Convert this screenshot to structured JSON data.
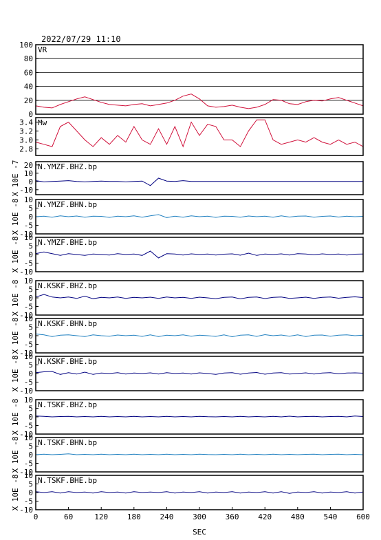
{
  "chart_data": [
    {
      "type": "line",
      "title": "2022/07/29  11:10",
      "label": "VR",
      "color": "#d0103a",
      "grid": true,
      "x": [
        0,
        15,
        30,
        45,
        60,
        75,
        90,
        105,
        120,
        135,
        150,
        165,
        180,
        195,
        210,
        225,
        240,
        255,
        270,
        285,
        300,
        315,
        330,
        345,
        360,
        375,
        390,
        405,
        420,
        435,
        450,
        465,
        480,
        495,
        510,
        525,
        540,
        555,
        570,
        585,
        600
      ],
      "values": [
        12,
        10,
        9,
        14,
        18,
        22,
        25,
        21,
        17,
        14,
        13,
        12,
        14,
        15,
        12,
        14,
        16,
        20,
        26,
        29,
        22,
        12,
        10,
        11,
        13,
        10,
        8,
        10,
        14,
        21,
        20,
        15,
        14,
        18,
        20,
        19,
        22,
        24,
        20,
        16,
        12
      ],
      "xlim": [
        0,
        600
      ],
      "ylim": [
        0,
        100
      ],
      "yticks": [
        0,
        20,
        40,
        60,
        80,
        100
      ]
    },
    {
      "type": "line",
      "label": "Mw",
      "color": "#d0103a",
      "x": [
        0,
        15,
        30,
        45,
        60,
        75,
        90,
        105,
        120,
        135,
        150,
        165,
        180,
        195,
        210,
        225,
        240,
        255,
        270,
        285,
        300,
        315,
        330,
        345,
        360,
        375,
        390,
        405,
        420,
        435,
        450,
        465,
        480,
        495,
        510,
        525,
        540,
        555,
        570,
        585,
        600
      ],
      "values": [
        2.95,
        2.9,
        2.85,
        3.3,
        3.4,
        3.2,
        3.0,
        2.85,
        3.05,
        2.9,
        3.1,
        2.95,
        3.3,
        3.0,
        2.9,
        3.25,
        2.9,
        3.3,
        2.85,
        3.4,
        3.1,
        3.35,
        3.3,
        3.0,
        3.0,
        2.85,
        3.2,
        3.45,
        3.45,
        3.0,
        2.9,
        2.95,
        3.0,
        2.95,
        3.05,
        2.95,
        2.9,
        3.0,
        2.9,
        2.95,
        2.85
      ],
      "xlim": [
        0,
        600
      ],
      "ylim": [
        2.65,
        3.5
      ],
      "yticks": [
        2.8,
        {
          "value": 3,
          "label": "3.0"
        },
        3.2,
        3.4
      ]
    },
    {
      "type": "line",
      "label": "N.YMZF.BHZ.bp",
      "ylabel": "X 10E -7",
      "color": "#000080",
      "x": [
        0,
        15,
        30,
        45,
        60,
        75,
        90,
        105,
        120,
        135,
        150,
        165,
        180,
        195,
        210,
        225,
        240,
        255,
        270,
        285,
        300,
        315,
        330,
        345,
        360,
        375,
        390,
        405,
        420,
        435,
        450,
        465,
        480,
        495,
        510,
        525,
        540,
        555,
        570,
        585,
        600
      ],
      "values": [
        1,
        -0.5,
        0,
        0.5,
        1,
        0,
        -0.5,
        0,
        0.5,
        0,
        0,
        -0.5,
        0,
        0.5,
        -5,
        4,
        0.5,
        0,
        1,
        0,
        0,
        0,
        0,
        0,
        0,
        0,
        0,
        0,
        0,
        0,
        0,
        0,
        0,
        0,
        0,
        0,
        0,
        0,
        0,
        0,
        0
      ],
      "xlim": [
        0,
        600
      ],
      "ylim": [
        -16,
        24
      ],
      "yticks": [
        -10,
        0,
        10,
        20
      ]
    },
    {
      "type": "line",
      "label": "N.YMZF.BHN.bp",
      "ylabel": "X 10E -8",
      "color": "#2080c0",
      "x": [
        0,
        15,
        30,
        45,
        60,
        75,
        90,
        105,
        120,
        135,
        150,
        165,
        180,
        195,
        210,
        225,
        240,
        255,
        270,
        285,
        300,
        315,
        330,
        345,
        360,
        375,
        390,
        405,
        420,
        435,
        450,
        465,
        480,
        495,
        510,
        525,
        540,
        555,
        570,
        585,
        600
      ],
      "values": [
        0,
        0.3,
        -0.3,
        0.5,
        0,
        0.4,
        -0.3,
        0.3,
        0.2,
        -0.4,
        0.3,
        0,
        0.5,
        -0.3,
        0.5,
        1.2,
        -0.5,
        0.3,
        -0.3,
        0.5,
        0,
        0.3,
        -0.4,
        0.3,
        0.2,
        -0.3,
        0.4,
        0,
        0.3,
        -0.3,
        0.5,
        -0.2,
        0.3,
        0.4,
        -0.3,
        0.2,
        0.4,
        -0.2,
        0.3,
        0,
        0.2
      ],
      "xlim": [
        0,
        600
      ],
      "ylim": [
        -10,
        10
      ],
      "yticks": [
        -10,
        -5,
        0,
        5,
        10
      ]
    },
    {
      "type": "line",
      "label": "N.YMZF.BHE.bp",
      "ylabel": "X 10E -8",
      "color": "#000080",
      "x": [
        0,
        15,
        30,
        45,
        60,
        75,
        90,
        105,
        120,
        135,
        150,
        165,
        180,
        195,
        210,
        225,
        240,
        255,
        270,
        285,
        300,
        315,
        330,
        345,
        360,
        375,
        390,
        405,
        420,
        435,
        450,
        465,
        480,
        495,
        510,
        525,
        540,
        555,
        570,
        585,
        600
      ],
      "values": [
        0.5,
        1.5,
        0.5,
        -0.5,
        0.5,
        0,
        -0.5,
        0.3,
        0,
        -0.3,
        0.5,
        0,
        0.3,
        -0.5,
        2,
        -2,
        0.5,
        0.3,
        -0.3,
        0.4,
        0,
        0.3,
        -0.3,
        0.2,
        0.4,
        -0.4,
        0.8,
        -0.5,
        0.3,
        0,
        0.4,
        -0.3,
        0.5,
        0.3,
        -0.2,
        0.4,
        0,
        0.3,
        -0.3,
        0.2,
        0.3
      ],
      "xlim": [
        0,
        600
      ],
      "ylim": [
        -10,
        10
      ],
      "yticks": [
        -10,
        -5,
        0,
        5,
        10
      ]
    },
    {
      "type": "line",
      "label": "N.KSKF.BHZ.bp",
      "ylabel": "X 10E -8",
      "color": "#000080",
      "x": [
        0,
        15,
        30,
        45,
        60,
        75,
        90,
        105,
        120,
        135,
        150,
        165,
        180,
        195,
        210,
        225,
        240,
        255,
        270,
        285,
        300,
        315,
        330,
        345,
        360,
        375,
        390,
        405,
        420,
        435,
        450,
        465,
        480,
        495,
        510,
        525,
        540,
        555,
        570,
        585,
        600
      ],
      "values": [
        0.5,
        2,
        0.5,
        0,
        0.5,
        -0.3,
        1,
        -0.5,
        0.3,
        0,
        0.5,
        -0.3,
        0.3,
        0,
        0.4,
        -0.3,
        0.5,
        0,
        0.3,
        -0.3,
        0.4,
        0,
        -0.5,
        0.3,
        0.5,
        -0.6,
        0.3,
        0.5,
        -0.4,
        0.3,
        0.5,
        -0.3,
        0,
        0.4,
        -0.3,
        0.3,
        0.5,
        -0.2,
        0.3,
        0.6,
        0.2
      ],
      "xlim": [
        0,
        600
      ],
      "ylim": [
        -10,
        10
      ],
      "yticks": [
        -10,
        -5,
        0,
        5,
        10
      ]
    },
    {
      "type": "line",
      "label": "N.KSKF.BHN.bp",
      "ylabel": "X 10E -8",
      "color": "#2080c0",
      "x": [
        0,
        15,
        30,
        45,
        60,
        75,
        90,
        105,
        120,
        135,
        150,
        165,
        180,
        195,
        210,
        225,
        240,
        255,
        270,
        285,
        300,
        315,
        330,
        345,
        360,
        375,
        390,
        405,
        420,
        435,
        450,
        465,
        480,
        495,
        510,
        525,
        540,
        555,
        570,
        585,
        600
      ],
      "values": [
        1,
        0.5,
        -0.5,
        0.3,
        0.5,
        0,
        -0.5,
        0.5,
        0,
        -0.3,
        0.4,
        0,
        0.3,
        -0.4,
        0.5,
        -0.5,
        0.3,
        0,
        0.5,
        -0.3,
        0.3,
        0,
        -0.4,
        0.5,
        -0.6,
        0.3,
        0.5,
        -0.4,
        0.6,
        0,
        0.4,
        -0.3,
        0.5,
        -0.5,
        0.3,
        0.4,
        -0.3,
        0.3,
        0.5,
        0,
        0.3
      ],
      "xlim": [
        0,
        600
      ],
      "ylim": [
        -10,
        10
      ],
      "yticks": [
        -10,
        -5,
        0,
        5,
        10
      ]
    },
    {
      "type": "line",
      "label": "N.KSKF.BHE.bp",
      "ylabel": "X 10E -8",
      "color": "#000080",
      "x": [
        0,
        15,
        30,
        45,
        60,
        75,
        90,
        105,
        120,
        135,
        150,
        165,
        180,
        195,
        210,
        225,
        240,
        255,
        270,
        285,
        300,
        315,
        330,
        345,
        360,
        375,
        390,
        405,
        420,
        435,
        450,
        465,
        480,
        495,
        510,
        525,
        540,
        555,
        570,
        585,
        600
      ],
      "values": [
        0.5,
        1,
        1.2,
        -0.5,
        0.5,
        -0.3,
        0.8,
        -0.5,
        0.3,
        0,
        0.5,
        -0.3,
        0.3,
        0,
        0.4,
        -0.3,
        0.5,
        0,
        0.3,
        -0.3,
        0.4,
        0,
        -0.5,
        0.3,
        0.5,
        -0.4,
        0.3,
        0.6,
        -0.4,
        0.3,
        0.5,
        -0.3,
        0,
        0.4,
        -0.3,
        0.3,
        0.5,
        -0.2,
        0.3,
        0.4,
        0.2
      ],
      "xlim": [
        0,
        600
      ],
      "ylim": [
        -10,
        10
      ],
      "yticks": [
        -10,
        -5,
        0,
        5,
        10
      ]
    },
    {
      "type": "line",
      "label": "N.TSKF.BHZ.bp",
      "ylabel": "X 10E -8",
      "color": "#000080",
      "x": [
        0,
        15,
        30,
        45,
        60,
        75,
        90,
        105,
        120,
        135,
        150,
        165,
        180,
        195,
        210,
        225,
        240,
        255,
        270,
        285,
        300,
        315,
        330,
        345,
        360,
        375,
        390,
        405,
        420,
        435,
        450,
        465,
        480,
        495,
        510,
        525,
        540,
        555,
        570,
        585,
        600
      ],
      "values": [
        0.5,
        0.3,
        0,
        0.2,
        0.3,
        0,
        0.2,
        0,
        0.3,
        0,
        0.2,
        0,
        0.3,
        0,
        0.2,
        0,
        0.3,
        0,
        0.2,
        0,
        0.3,
        0.1,
        0,
        0.2,
        0,
        0.3,
        0,
        0.2,
        0,
        0.3,
        0,
        0.4,
        0,
        0.2,
        0.3,
        0,
        0.2,
        0.3,
        0,
        0.5,
        0.2
      ],
      "xlim": [
        0,
        600
      ],
      "ylim": [
        -10,
        10
      ],
      "yticks": [
        -10,
        -5,
        0,
        5,
        10
      ]
    },
    {
      "type": "line",
      "label": "N.TSKF.BHN.bp",
      "ylabel": "X 10E -8",
      "color": "#2080c0",
      "x": [
        0,
        15,
        30,
        45,
        60,
        75,
        90,
        105,
        120,
        135,
        150,
        165,
        180,
        195,
        210,
        225,
        240,
        255,
        270,
        285,
        300,
        315,
        330,
        345,
        360,
        375,
        390,
        405,
        420,
        435,
        450,
        465,
        480,
        495,
        510,
        525,
        540,
        555,
        570,
        585,
        600
      ],
      "values": [
        0,
        0.3,
        0,
        0.2,
        0.5,
        0,
        0.2,
        0,
        0.3,
        0,
        0.2,
        0,
        0.3,
        0,
        0.2,
        0,
        0.3,
        0,
        0.2,
        0,
        0.3,
        0.1,
        0,
        0.2,
        0,
        0.3,
        0,
        0.2,
        0,
        0.3,
        0,
        0.2,
        0,
        0.2,
        0.3,
        0,
        0.2,
        0.3,
        0,
        0.2,
        0
      ],
      "xlim": [
        0,
        600
      ],
      "ylim": [
        -10,
        10
      ],
      "yticks": [
        -10,
        -5,
        0,
        5,
        10
      ]
    },
    {
      "type": "line",
      "label": "N.TSKF.BHE.bp",
      "ylabel": "X 10E -8",
      "color": "#000080",
      "x": [
        0,
        15,
        30,
        45,
        60,
        75,
        90,
        105,
        120,
        135,
        150,
        165,
        180,
        195,
        210,
        225,
        240,
        255,
        270,
        285,
        300,
        315,
        330,
        345,
        360,
        375,
        390,
        405,
        420,
        435,
        450,
        465,
        480,
        495,
        510,
        525,
        540,
        555,
        570,
        585,
        600
      ],
      "values": [
        0.5,
        0,
        0.5,
        -0.3,
        0.5,
        0,
        0.3,
        -0.3,
        0.5,
        0,
        0.3,
        -0.3,
        0.5,
        0,
        0.3,
        0,
        0.5,
        -0.3,
        0.3,
        0,
        0.5,
        -0.3,
        0.3,
        0,
        0.5,
        -0.3,
        0.3,
        0,
        0.5,
        -0.3,
        0.5,
        -0.5,
        0.3,
        0,
        0.5,
        -0.3,
        0.3,
        0,
        0.5,
        -0.3,
        0.3
      ],
      "xlim": [
        0,
        600
      ],
      "ylim": [
        -10,
        10
      ],
      "yticks": [
        -10,
        -5,
        0,
        5,
        10
      ],
      "xlabel": "SEC",
      "xticks": [
        0,
        60,
        120,
        180,
        240,
        300,
        360,
        420,
        480,
        540,
        600
      ]
    }
  ]
}
